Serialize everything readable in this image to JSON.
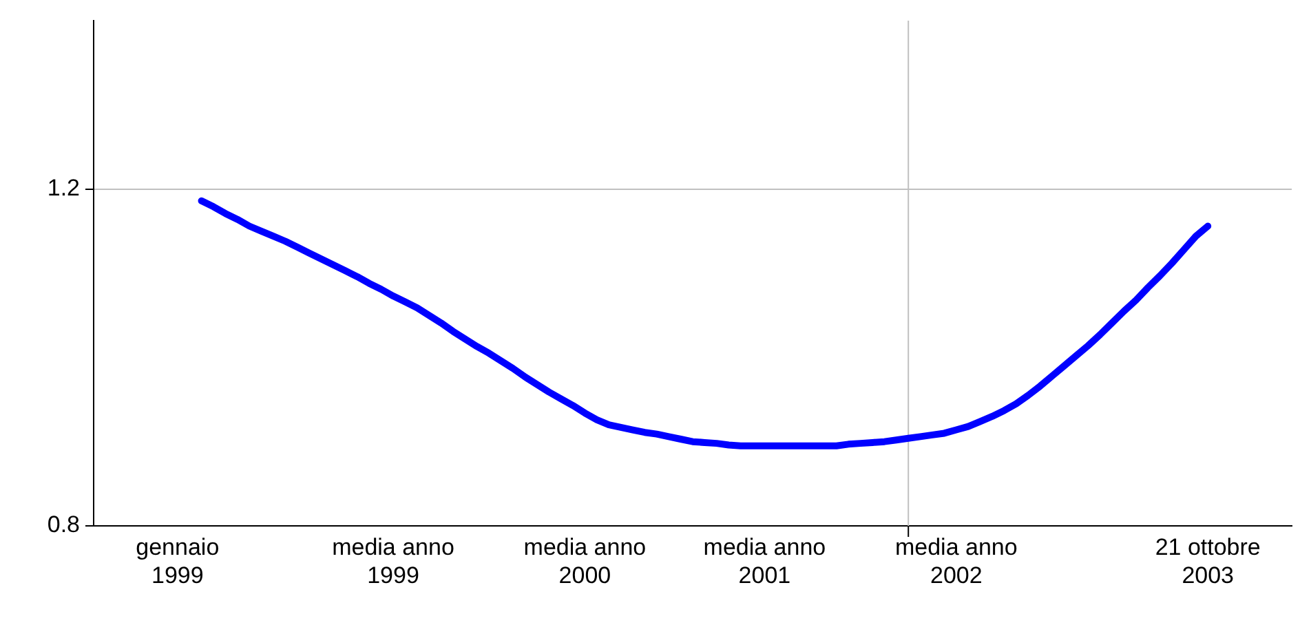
{
  "chart_data": {
    "type": "line",
    "categories": [
      null,
      null,
      null,
      null,
      null,
      null,
      null,
      "gennaio 1999",
      null,
      null,
      null,
      null,
      null,
      null,
      null,
      null,
      null,
      null,
      null,
      null,
      null,
      null,
      null,
      null,
      null,
      "media anno 1999",
      null,
      null,
      null,
      null,
      null,
      null,
      null,
      null,
      null,
      null,
      null,
      null,
      null,
      null,
      null,
      "media anno 2000",
      null,
      null,
      null,
      null,
      null,
      null,
      null,
      null,
      null,
      null,
      null,
      null,
      null,
      null,
      "media anno 2001",
      null,
      null,
      null,
      null,
      null,
      null,
      null,
      null,
      null,
      null,
      null,
      null,
      null,
      null,
      null,
      "media anno 2002",
      null,
      null,
      null,
      null,
      null,
      null,
      null,
      null,
      null,
      null,
      null,
      null,
      null,
      null,
      null,
      null,
      null,
      null,
      null,
      null,
      "21 ottobre 2003",
      null,
      null,
      null,
      null,
      null,
      null,
      null
    ],
    "series": [
      {
        "color": "#0000ff",
        "values": [
          null,
          null,
          null,
          null,
          null,
          null,
          null,
          null,
          null,
          1.186,
          1.179,
          1.171,
          1.164,
          1.156,
          1.15,
          1.144,
          1.138,
          1.131,
          1.124,
          1.117,
          1.11,
          1.103,
          1.096,
          1.088,
          1.081,
          1.073,
          1.066,
          1.059,
          1.05,
          1.041,
          1.031,
          1.022,
          1.013,
          1.005,
          0.996,
          0.987,
          0.977,
          0.968,
          0.959,
          0.951,
          0.943,
          0.934,
          0.926,
          0.92,
          0.917,
          0.914,
          0.911,
          0.909,
          0.906,
          0.903,
          0.9,
          0.899,
          0.898,
          0.896,
          0.895,
          0.895,
          0.895,
          0.895,
          0.895,
          0.895,
          0.895,
          0.895,
          0.895,
          0.897,
          0.898,
          0.899,
          0.9,
          0.902,
          0.904,
          0.906,
          0.908,
          0.91,
          0.914,
          0.918,
          0.924,
          0.93,
          0.937,
          0.945,
          0.955,
          0.966,
          0.978,
          0.99,
          1.002,
          1.014,
          1.027,
          1.041,
          1.055,
          1.068,
          1.083,
          1.097,
          1.112,
          1.128,
          1.144,
          1.156,
          null,
          null,
          null,
          null,
          null,
          null,
          null
        ]
      }
    ],
    "ylim": [
      0.8,
      1.4
    ],
    "yticks": [
      0.8,
      1.2
    ],
    "grid": "y",
    "marker": "none",
    "line_style": "solid",
    "legend": false
  }
}
